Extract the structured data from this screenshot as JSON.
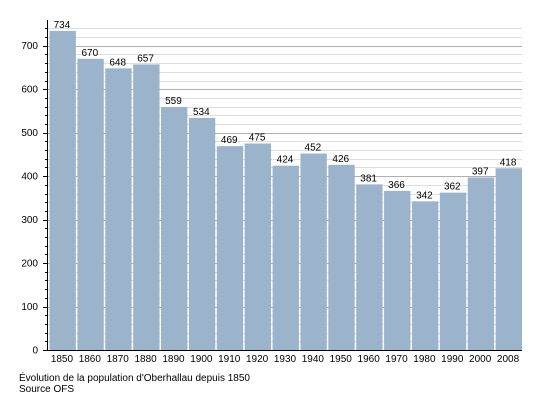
{
  "caption": {
    "line1": "Évolution de la population d'Oberhallau depuis 1850",
    "line2": "Source OFS"
  },
  "colors": {
    "bar": "#9cb3cc",
    "bar_edge": "#8ca4bf",
    "grid_major": "#b0b0b0",
    "grid_minor": "#dedede",
    "axis": "#000000",
    "text": "#000000"
  },
  "chart_data": {
    "type": "bar",
    "categories": [
      "1850",
      "1860",
      "1870",
      "1880",
      "1890",
      "1900",
      "1910",
      "1920",
      "1930",
      "1940",
      "1950",
      "1960",
      "1970",
      "1980",
      "1990",
      "2000",
      "2008"
    ],
    "values": [
      734,
      670,
      648,
      657,
      559,
      534,
      469,
      475,
      424,
      452,
      426,
      381,
      366,
      342,
      362,
      397,
      418
    ],
    "data_labels": [
      "734",
      "670",
      "648",
      "657",
      "559",
      "534",
      "469",
      "475",
      "424",
      "452",
      "426",
      "381",
      "366",
      "342",
      "362",
      "397",
      "418"
    ],
    "title": "",
    "xlabel": "",
    "ylabel": "",
    "ylim": [
      0,
      750
    ],
    "yticks": [
      0,
      100,
      200,
      300,
      400,
      500,
      600,
      700
    ],
    "ytick_labels": [
      "0",
      "100",
      "200",
      "300",
      "400",
      "500",
      "600",
      "700"
    ],
    "grid": true,
    "legend": "none"
  }
}
